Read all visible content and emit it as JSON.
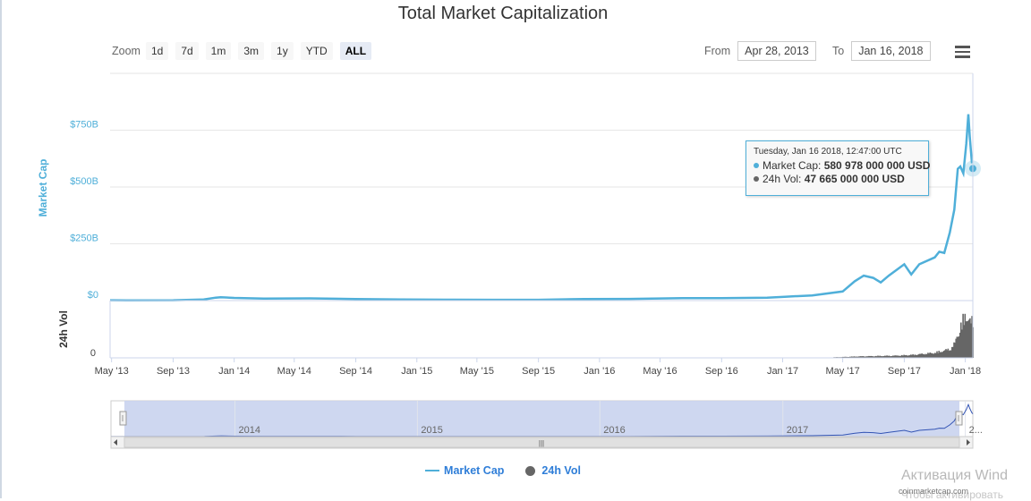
{
  "chart_data": {
    "type": "line",
    "title": "Total Market Capitalization",
    "ylabel": "Market Cap",
    "ylabel2": "24h Vol",
    "yticks": [
      "$0",
      "$250B",
      "$500B",
      "$750B"
    ],
    "ytick_values": [
      0,
      250,
      500,
      750
    ],
    "ylim": [
      0,
      1000
    ],
    "vol_ytick": "0",
    "xticks": [
      "May '13",
      "Sep '13",
      "Jan '14",
      "May '14",
      "Sep '14",
      "Jan '15",
      "May '15",
      "Sep '15",
      "Jan '16",
      "May '16",
      "Sep '16",
      "Jan '17",
      "May '17",
      "Sep '17",
      "Jan '18"
    ],
    "xtick_dates": [
      "2013-05-01",
      "2013-09-01",
      "2014-01-01",
      "2014-05-01",
      "2014-09-01",
      "2015-01-01",
      "2015-05-01",
      "2015-09-01",
      "2016-01-01",
      "2016-05-01",
      "2016-09-01",
      "2017-01-01",
      "2017-05-01",
      "2017-09-01",
      "2018-01-01"
    ],
    "x_range": [
      "2013-04-28",
      "2018-01-16"
    ],
    "units": "billion USD",
    "series": [
      {
        "name": "Market Cap",
        "color": "#4fafd9",
        "x": [
          "2013-04-28",
          "2013-06-01",
          "2013-09-01",
          "2013-11-01",
          "2013-11-25",
          "2013-12-05",
          "2014-01-01",
          "2014-03-01",
          "2014-06-01",
          "2014-09-01",
          "2014-12-01",
          "2015-03-01",
          "2015-06-01",
          "2015-09-01",
          "2015-12-01",
          "2016-03-01",
          "2016-06-15",
          "2016-09-01",
          "2016-12-01",
          "2017-01-05",
          "2017-03-01",
          "2017-05-01",
          "2017-05-25",
          "2017-06-12",
          "2017-07-01",
          "2017-07-16",
          "2017-08-01",
          "2017-09-01",
          "2017-09-15",
          "2017-10-01",
          "2017-11-01",
          "2017-11-10",
          "2017-11-20",
          "2017-12-01",
          "2017-12-10",
          "2017-12-17",
          "2017-12-22",
          "2017-12-28",
          "2018-01-03",
          "2018-01-07",
          "2018-01-10",
          "2018-01-14",
          "2018-01-16"
        ],
        "y": [
          1.5,
          1.3,
          1.7,
          5,
          13,
          15,
          12,
          9,
          10,
          7,
          5,
          4,
          3.5,
          3.5,
          7,
          7.5,
          11,
          11,
          13,
          17,
          23,
          40,
          85,
          110,
          100,
          80,
          110,
          160,
          115,
          160,
          190,
          215,
          210,
          300,
          400,
          580,
          590,
          560,
          690,
          820,
          720,
          610,
          581
        ]
      },
      {
        "name": "24h Vol",
        "color": "#666666",
        "x": [
          "2013-04-28",
          "2016-12-01",
          "2017-04-01",
          "2017-06-01",
          "2017-08-15",
          "2017-09-15",
          "2017-11-01",
          "2017-12-01",
          "2017-12-10",
          "2017-12-22",
          "2018-01-05",
          "2018-01-10",
          "2018-01-16"
        ],
        "y": [
          0.1,
          0.2,
          0.5,
          2,
          3,
          4,
          7,
          12,
          20,
          45,
          60,
          48,
          47.7
        ]
      }
    ],
    "vol_ylim": [
      0,
      60
    ],
    "navigator_labels": [
      "2014",
      "2015",
      "2016",
      "2017",
      "2..."
    ],
    "navigator_dates": [
      "2014-01-01",
      "2015-01-01",
      "2016-01-01",
      "2017-01-01",
      "2018-01-01"
    ],
    "tooltip": {
      "header": "Tuesday, Jan 16 2018, 12:47:00 UTC",
      "mc_label": "Market Cap:",
      "mc_value": "580 978 000 000 USD",
      "vol_label": "24h Vol:",
      "vol_value": "47 665 000 000 USD",
      "date": "2018-01-16",
      "mc_billions": 580.978
    },
    "grid": true,
    "legend_position": "bottom-center"
  },
  "toolbar": {
    "zoom_label": "Zoom",
    "zoom_buttons": [
      "1d",
      "7d",
      "1m",
      "3m",
      "1y",
      "YTD",
      "ALL"
    ],
    "active_zoom": "ALL",
    "from_label": "From",
    "from_value": "Apr 28, 2013",
    "to_label": "To",
    "to_value": "Jan 16, 2018"
  },
  "scrollbar": {
    "grip": "|||"
  },
  "credit": "coinmarketcap.com",
  "watermark": {
    "line1": "Активация Wind",
    "line2": "Чтобы активировать"
  },
  "colors": {
    "market_cap": "#4fafd9",
    "volume": "#666666",
    "navigator_fill": "#c9d3ee",
    "accent": "#2f7ed8"
  }
}
